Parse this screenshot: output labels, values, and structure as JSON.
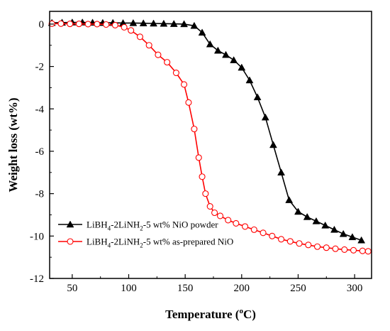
{
  "chart_data": {
    "type": "line",
    "xlabel": "Temperature (",
    "xlabel_sup": "o",
    "xlabel_unit": "C)",
    "ylabel": "Weight loss (wt%)",
    "xlim": [
      30,
      315
    ],
    "ylim": [
      -12,
      0.6
    ],
    "xticks": [
      50,
      100,
      150,
      200,
      250,
      300
    ],
    "yticks": [
      0,
      -2,
      -4,
      -6,
      -8,
      -10,
      -12
    ],
    "grid": false,
    "legend_position": "bottom-left",
    "series": [
      {
        "name": "LiBH4-2LiNH2-5 wt% NiO powder",
        "legend": {
          "prefix": "LiBH",
          "s1": "4",
          "mid": "-2LiNH",
          "s2": "2",
          "suffix": "-5 wt% NiO powder"
        },
        "color": "#000000",
        "marker": "filled-triangle",
        "x": [
          32,
          41,
          50,
          59,
          68,
          77,
          86,
          95,
          104,
          113,
          122,
          131,
          140,
          149,
          158,
          165,
          172,
          179,
          186,
          193,
          200,
          207,
          214,
          221,
          228,
          235,
          242,
          250,
          258,
          266,
          274,
          282,
          290,
          298,
          306
        ],
        "y": [
          0.06,
          0.07,
          0.08,
          0.08,
          0.07,
          0.06,
          0.06,
          0.05,
          0.05,
          0.04,
          0.03,
          0.02,
          0.01,
          0,
          -0.08,
          -0.4,
          -0.95,
          -1.25,
          -1.45,
          -1.7,
          -2.05,
          -2.65,
          -3.45,
          -4.4,
          -5.7,
          -7.0,
          -8.3,
          -8.85,
          -9.1,
          -9.3,
          -9.5,
          -9.7,
          -9.9,
          -10.05,
          -10.2
        ]
      },
      {
        "name": "LiBH4-2LiNH2-5 wt% as-prepared NiO",
        "legend": {
          "prefix": "LiBH",
          "s1": "4",
          "mid": "-2LiNH",
          "s2": "2",
          "suffix": "-5 wt% as-prepared NiO"
        },
        "color": "#ff0000",
        "marker": "open-circle",
        "x": [
          32,
          40,
          48,
          56,
          64,
          72,
          80,
          88,
          96,
          102,
          110,
          118,
          126,
          134,
          142,
          149,
          153,
          158,
          162,
          165,
          168,
          172,
          176,
          181,
          188,
          195,
          203,
          211,
          219,
          227,
          235,
          243,
          251,
          259,
          267,
          275,
          283,
          291,
          299,
          307,
          312
        ],
        "y": [
          0.02,
          0.02,
          0.01,
          0.01,
          0,
          0,
          -0.02,
          -0.05,
          -0.15,
          -0.3,
          -0.6,
          -1.0,
          -1.45,
          -1.8,
          -2.3,
          -2.85,
          -3.7,
          -4.95,
          -6.3,
          -7.2,
          -8.0,
          -8.6,
          -8.9,
          -9.05,
          -9.25,
          -9.4,
          -9.55,
          -9.7,
          -9.85,
          -10.0,
          -10.15,
          -10.25,
          -10.35,
          -10.42,
          -10.5,
          -10.55,
          -10.6,
          -10.64,
          -10.67,
          -10.7,
          -10.72
        ]
      }
    ]
  }
}
